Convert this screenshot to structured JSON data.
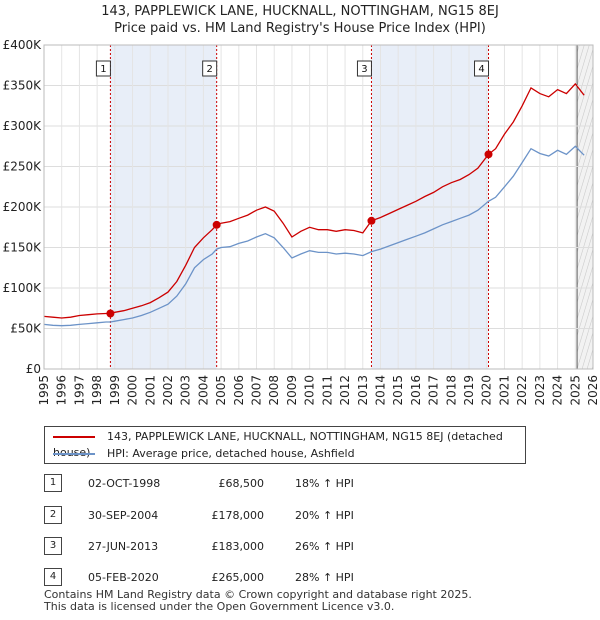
{
  "title_line1": "143, PAPPLEWICK LANE, HUCKNALL, NOTTINGHAM, NG15 8EJ",
  "title_line2": "Price paid vs. HM Land Registry's House Price Index (HPI)",
  "colors": {
    "property": "#cc0000",
    "hpi": "#6c93c8",
    "shade": "#e8eef8",
    "vline": "#cc0000"
  },
  "chart_data": {
    "type": "line",
    "xlim": [
      1995,
      2026
    ],
    "ylim": [
      0,
      400000
    ],
    "x_ticks": [
      "1995",
      "1996",
      "1997",
      "1998",
      "1999",
      "2000",
      "2001",
      "2002",
      "2003",
      "2004",
      "2005",
      "2006",
      "2007",
      "2008",
      "2009",
      "2010",
      "2011",
      "2012",
      "2013",
      "2014",
      "2015",
      "2016",
      "2017",
      "2018",
      "2019",
      "2020",
      "2021",
      "2022",
      "2023",
      "2024",
      "2025",
      "2026"
    ],
    "y_ticks": [
      {
        "value": 0,
        "label": "£0"
      },
      {
        "value": 50000,
        "label": "£50K"
      },
      {
        "value": 100000,
        "label": "£100K"
      },
      {
        "value": 150000,
        "label": "£150K"
      },
      {
        "value": 200000,
        "label": "£200K"
      },
      {
        "value": 250000,
        "label": "£250K"
      },
      {
        "value": 300000,
        "label": "£300K"
      },
      {
        "value": 350000,
        "label": "£350K"
      },
      {
        "value": 400000,
        "label": "£400K"
      }
    ],
    "shaded_periods": [
      [
        1998.75,
        2004.75
      ],
      [
        2013.49,
        2020.1
      ]
    ],
    "series": [
      {
        "name": "143, PAPPLEWICK LANE, HUCKNALL, NOTTINGHAM, NG15 8EJ (detached house)",
        "x": [
          1995,
          1995.5,
          1996,
          1996.5,
          1997,
          1997.5,
          1998,
          1998.5,
          1998.75,
          1999,
          1999.5,
          2000,
          2000.5,
          2001,
          2001.5,
          2002,
          2002.5,
          2003,
          2003.5,
          2004,
          2004.5,
          2004.75,
          2005,
          2005.5,
          2006,
          2006.5,
          2007,
          2007.5,
          2008,
          2008.5,
          2009,
          2009.5,
          2010,
          2010.5,
          2011,
          2011.5,
          2012,
          2012.5,
          2013,
          2013.49,
          2014,
          2014.5,
          2015,
          2015.5,
          2016,
          2016.5,
          2017,
          2017.5,
          2018,
          2018.5,
          2019,
          2019.5,
          2020.1,
          2020.5,
          2021,
          2021.5,
          2022,
          2022.5,
          2023,
          2023.5,
          2024,
          2024.5,
          2025,
          2025.5
        ],
        "y": [
          65000,
          64000,
          63000,
          64000,
          66000,
          67000,
          68000,
          68500,
          68500,
          70000,
          72000,
          75000,
          78000,
          82000,
          88000,
          95000,
          108000,
          128000,
          150000,
          162000,
          172000,
          178000,
          180000,
          182000,
          186000,
          190000,
          196000,
          200000,
          195000,
          180000,
          163000,
          170000,
          175000,
          172000,
          172000,
          170000,
          172000,
          171000,
          168000,
          183000,
          187000,
          192000,
          197000,
          202000,
          207000,
          213000,
          218000,
          225000,
          230000,
          234000,
          240000,
          248000,
          265000,
          272000,
          290000,
          305000,
          325000,
          347000,
          340000,
          336000,
          345000,
          340000,
          352000,
          338000
        ]
      },
      {
        "name": "HPI: Average price, detached house, Ashfield",
        "x": [
          1995,
          1995.5,
          1996,
          1996.5,
          1997,
          1997.5,
          1998,
          1998.5,
          1998.75,
          1999,
          1999.5,
          2000,
          2000.5,
          2001,
          2001.5,
          2002,
          2002.5,
          2003,
          2003.5,
          2004,
          2004.5,
          2004.75,
          2005,
          2005.5,
          2006,
          2006.5,
          2007,
          2007.5,
          2008,
          2008.5,
          2009,
          2009.5,
          2010,
          2010.5,
          2011,
          2011.5,
          2012,
          2012.5,
          2013,
          2013.49,
          2014,
          2014.5,
          2015,
          2015.5,
          2016,
          2016.5,
          2017,
          2017.5,
          2018,
          2018.5,
          2019,
          2019.5,
          2020.1,
          2020.5,
          2021,
          2021.5,
          2022,
          2022.5,
          2023,
          2023.5,
          2024,
          2024.5,
          2025,
          2025.5
        ],
        "y": [
          55000,
          54000,
          53500,
          54000,
          55000,
          56000,
          57000,
          58000,
          58000,
          59000,
          61000,
          63000,
          66000,
          70000,
          75000,
          80000,
          90000,
          105000,
          125000,
          135000,
          142000,
          148000,
          150000,
          151000,
          155000,
          158000,
          163000,
          167000,
          162000,
          150000,
          137000,
          142000,
          146000,
          144000,
          144000,
          142000,
          143000,
          142000,
          140000,
          145000,
          148000,
          152000,
          156000,
          160000,
          164000,
          168000,
          173000,
          178000,
          182000,
          186000,
          190000,
          196000,
          207000,
          212000,
          225000,
          238000,
          255000,
          272000,
          266000,
          263000,
          270000,
          265000,
          275000,
          264000
        ]
      }
    ],
    "sales": [
      {
        "badge": "1",
        "x": 1998.75,
        "y": 68500
      },
      {
        "badge": "2",
        "x": 2004.75,
        "y": 178000
      },
      {
        "badge": "3",
        "x": 2013.49,
        "y": 183000
      },
      {
        "badge": "4",
        "x": 2020.1,
        "y": 265000
      }
    ]
  },
  "legend": {
    "property_label": "143, PAPPLEWICK LANE, HUCKNALL, NOTTINGHAM, NG15 8EJ (detached house)",
    "hpi_label": "HPI: Average price, detached house, Ashfield"
  },
  "sales_table": [
    {
      "badge": "1",
      "date": "02-OCT-1998",
      "price": "£68,500",
      "hpi": "18% ↑ HPI"
    },
    {
      "badge": "2",
      "date": "30-SEP-2004",
      "price": "£178,000",
      "hpi": "20% ↑ HPI"
    },
    {
      "badge": "3",
      "date": "27-JUN-2013",
      "price": "£183,000",
      "hpi": "26% ↑ HPI"
    },
    {
      "badge": "4",
      "date": "05-FEB-2020",
      "price": "£265,000",
      "hpi": "28% ↑ HPI"
    }
  ],
  "footer": {
    "line1": "Contains HM Land Registry data © Crown copyright and database right 2025.",
    "line2": "This data is licensed under the Open Government Licence v3.0."
  }
}
